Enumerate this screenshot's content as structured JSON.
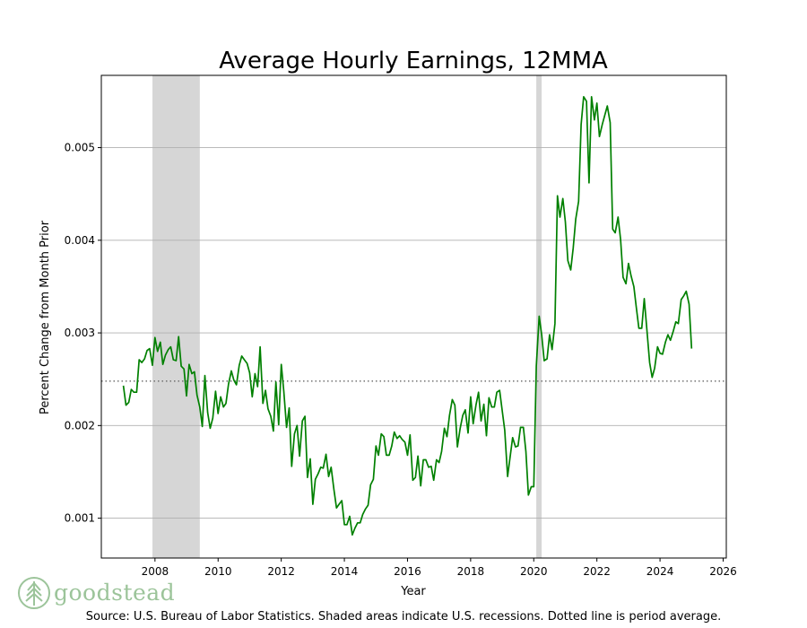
{
  "chart_data": {
    "type": "line",
    "title": "Average Hourly Earnings, 12MMA",
    "xlabel": "Year",
    "ylabel": "Percent Change from Month Prior",
    "xlim": [
      2006.3,
      2026.1
    ],
    "ylim": [
      0.00057,
      0.00578
    ],
    "x_ticks": [
      2008,
      2010,
      2012,
      2014,
      2016,
      2018,
      2020,
      2022,
      2024,
      2026
    ],
    "y_ticks": [
      0.001,
      0.002,
      0.003,
      0.004,
      0.005
    ],
    "x_tick_labels": [
      "2008",
      "2010",
      "2012",
      "2014",
      "2016",
      "2018",
      "2020",
      "2022",
      "2024",
      "2026"
    ],
    "y_tick_labels": [
      "0.001",
      "0.002",
      "0.003",
      "0.004",
      "0.005"
    ],
    "grid": "horizontal",
    "average_line": 0.00248,
    "recessions": [
      [
        2007.92,
        2009.42
      ],
      [
        2020.08,
        2020.25
      ]
    ],
    "series": [
      {
        "name": "Average Hourly Earnings 12MMA",
        "color": "#008000",
        "points": [
          [
            2007.0,
            0.00243
          ],
          [
            2007.08,
            0.00222
          ],
          [
            2007.17,
            0.00225
          ],
          [
            2007.25,
            0.00239
          ],
          [
            2007.33,
            0.00236
          ],
          [
            2007.42,
            0.00236
          ],
          [
            2007.5,
            0.00271
          ],
          [
            2007.58,
            0.00268
          ],
          [
            2007.67,
            0.00272
          ],
          [
            2007.75,
            0.00281
          ],
          [
            2007.83,
            0.00283
          ],
          [
            2007.92,
            0.00265
          ],
          [
            2008.0,
            0.00295
          ],
          [
            2008.08,
            0.0028
          ],
          [
            2008.17,
            0.0029
          ],
          [
            2008.25,
            0.00266
          ],
          [
            2008.33,
            0.00276
          ],
          [
            2008.42,
            0.00282
          ],
          [
            2008.5,
            0.00285
          ],
          [
            2008.58,
            0.00271
          ],
          [
            2008.67,
            0.0027
          ],
          [
            2008.75,
            0.00296
          ],
          [
            2008.83,
            0.00264
          ],
          [
            2008.92,
            0.00261
          ],
          [
            2009.0,
            0.00232
          ],
          [
            2009.08,
            0.00266
          ],
          [
            2009.17,
            0.00256
          ],
          [
            2009.25,
            0.00258
          ],
          [
            2009.33,
            0.00233
          ],
          [
            2009.42,
            0.0022
          ],
          [
            2009.5,
            0.00199
          ],
          [
            2009.58,
            0.00254
          ],
          [
            2009.67,
            0.00214
          ],
          [
            2009.75,
            0.00197
          ],
          [
            2009.83,
            0.00208
          ],
          [
            2009.92,
            0.00237
          ],
          [
            2010.0,
            0.00213
          ],
          [
            2010.08,
            0.00231
          ],
          [
            2010.17,
            0.0022
          ],
          [
            2010.25,
            0.00224
          ],
          [
            2010.33,
            0.00245
          ],
          [
            2010.42,
            0.00259
          ],
          [
            2010.5,
            0.00249
          ],
          [
            2010.58,
            0.00244
          ],
          [
            2010.67,
            0.00265
          ],
          [
            2010.75,
            0.00275
          ],
          [
            2010.83,
            0.00271
          ],
          [
            2010.92,
            0.00267
          ],
          [
            2011.0,
            0.00257
          ],
          [
            2011.08,
            0.00231
          ],
          [
            2011.17,
            0.00256
          ],
          [
            2011.25,
            0.00242
          ],
          [
            2011.33,
            0.00285
          ],
          [
            2011.42,
            0.00224
          ],
          [
            2011.5,
            0.00238
          ],
          [
            2011.58,
            0.00218
          ],
          [
            2011.67,
            0.0021
          ],
          [
            2011.75,
            0.00194
          ],
          [
            2011.83,
            0.00247
          ],
          [
            2011.92,
            0.00201
          ],
          [
            2012.0,
            0.00266
          ],
          [
            2012.08,
            0.00237
          ],
          [
            2012.17,
            0.00198
          ],
          [
            2012.25,
            0.00219
          ],
          [
            2012.33,
            0.00156
          ],
          [
            2012.42,
            0.00191
          ],
          [
            2012.5,
            0.002
          ],
          [
            2012.58,
            0.00167
          ],
          [
            2012.67,
            0.00205
          ],
          [
            2012.75,
            0.0021
          ],
          [
            2012.83,
            0.00144
          ],
          [
            2012.92,
            0.00164
          ],
          [
            2013.0,
            0.00115
          ],
          [
            2013.08,
            0.00142
          ],
          [
            2013.17,
            0.00148
          ],
          [
            2013.25,
            0.00155
          ],
          [
            2013.33,
            0.00154
          ],
          [
            2013.42,
            0.00169
          ],
          [
            2013.5,
            0.00145
          ],
          [
            2013.58,
            0.00155
          ],
          [
            2013.67,
            0.00131
          ],
          [
            2013.75,
            0.00111
          ],
          [
            2013.83,
            0.00115
          ],
          [
            2013.92,
            0.00119
          ],
          [
            2014.0,
            0.00093
          ],
          [
            2014.08,
            0.00093
          ],
          [
            2014.17,
            0.00102
          ],
          [
            2014.25,
            0.00082
          ],
          [
            2014.33,
            0.00089
          ],
          [
            2014.42,
            0.00095
          ],
          [
            2014.5,
            0.00095
          ],
          [
            2014.58,
            0.00104
          ],
          [
            2014.67,
            0.0011
          ],
          [
            2014.75,
            0.00114
          ],
          [
            2014.83,
            0.00136
          ],
          [
            2014.92,
            0.00142
          ],
          [
            2015.0,
            0.00178
          ],
          [
            2015.08,
            0.00168
          ],
          [
            2015.17,
            0.00191
          ],
          [
            2015.25,
            0.00188
          ],
          [
            2015.33,
            0.00168
          ],
          [
            2015.42,
            0.00168
          ],
          [
            2015.5,
            0.00178
          ],
          [
            2015.58,
            0.00193
          ],
          [
            2015.67,
            0.00186
          ],
          [
            2015.75,
            0.00189
          ],
          [
            2015.83,
            0.00185
          ],
          [
            2015.92,
            0.00182
          ],
          [
            2016.0,
            0.00168
          ],
          [
            2016.08,
            0.0019
          ],
          [
            2016.17,
            0.00141
          ],
          [
            2016.25,
            0.00144
          ],
          [
            2016.33,
            0.00167
          ],
          [
            2016.42,
            0.00135
          ],
          [
            2016.5,
            0.00163
          ],
          [
            2016.58,
            0.00163
          ],
          [
            2016.67,
            0.00155
          ],
          [
            2016.75,
            0.00156
          ],
          [
            2016.83,
            0.00141
          ],
          [
            2016.92,
            0.00163
          ],
          [
            2017.0,
            0.0016
          ],
          [
            2017.08,
            0.00172
          ],
          [
            2017.17,
            0.00197
          ],
          [
            2017.25,
            0.00188
          ],
          [
            2017.33,
            0.00211
          ],
          [
            2017.42,
            0.00228
          ],
          [
            2017.5,
            0.00222
          ],
          [
            2017.58,
            0.00177
          ],
          [
            2017.67,
            0.00197
          ],
          [
            2017.75,
            0.00211
          ],
          [
            2017.83,
            0.00217
          ],
          [
            2017.92,
            0.00192
          ],
          [
            2018.0,
            0.00231
          ],
          [
            2018.08,
            0.00202
          ],
          [
            2018.17,
            0.00222
          ],
          [
            2018.25,
            0.00236
          ],
          [
            2018.33,
            0.00205
          ],
          [
            2018.42,
            0.00223
          ],
          [
            2018.5,
            0.00189
          ],
          [
            2018.58,
            0.0023
          ],
          [
            2018.67,
            0.0022
          ],
          [
            2018.75,
            0.0022
          ],
          [
            2018.83,
            0.00236
          ],
          [
            2018.92,
            0.00238
          ],
          [
            2019.0,
            0.00216
          ],
          [
            2019.08,
            0.00195
          ],
          [
            2019.17,
            0.00145
          ],
          [
            2019.25,
            0.00166
          ],
          [
            2019.33,
            0.00187
          ],
          [
            2019.42,
            0.00177
          ],
          [
            2019.5,
            0.00178
          ],
          [
            2019.58,
            0.00198
          ],
          [
            2019.67,
            0.00198
          ],
          [
            2019.75,
            0.00172
          ],
          [
            2019.83,
            0.00125
          ],
          [
            2019.92,
            0.00134
          ],
          [
            2020.0,
            0.00134
          ],
          [
            2020.08,
            0.00264
          ],
          [
            2020.17,
            0.00318
          ],
          [
            2020.25,
            0.00298
          ],
          [
            2020.33,
            0.0027
          ],
          [
            2020.42,
            0.00272
          ],
          [
            2020.5,
            0.00298
          ],
          [
            2020.58,
            0.00282
          ],
          [
            2020.67,
            0.0031
          ],
          [
            2020.75,
            0.00448
          ],
          [
            2020.83,
            0.00425
          ],
          [
            2020.92,
            0.00445
          ],
          [
            2021.0,
            0.0042
          ],
          [
            2021.08,
            0.00378
          ],
          [
            2021.17,
            0.00368
          ],
          [
            2021.25,
            0.00392
          ],
          [
            2021.33,
            0.00423
          ],
          [
            2021.42,
            0.00442
          ],
          [
            2021.5,
            0.00525
          ],
          [
            2021.58,
            0.00555
          ],
          [
            2021.67,
            0.0055
          ],
          [
            2021.75,
            0.00462
          ],
          [
            2021.83,
            0.00555
          ],
          [
            2021.92,
            0.0053
          ],
          [
            2022.0,
            0.00548
          ],
          [
            2022.08,
            0.00512
          ],
          [
            2022.17,
            0.00525
          ],
          [
            2022.25,
            0.00535
          ],
          [
            2022.33,
            0.00545
          ],
          [
            2022.42,
            0.00527
          ],
          [
            2022.5,
            0.00412
          ],
          [
            2022.58,
            0.00408
          ],
          [
            2022.67,
            0.00425
          ],
          [
            2022.75,
            0.00401
          ],
          [
            2022.83,
            0.0036
          ],
          [
            2022.92,
            0.00353
          ],
          [
            2023.0,
            0.00375
          ],
          [
            2023.08,
            0.00362
          ],
          [
            2023.17,
            0.0035
          ],
          [
            2023.25,
            0.00327
          ],
          [
            2023.33,
            0.00305
          ],
          [
            2023.42,
            0.00305
          ],
          [
            2023.5,
            0.00337
          ],
          [
            2023.58,
            0.00305
          ],
          [
            2023.67,
            0.00268
          ],
          [
            2023.75,
            0.00252
          ],
          [
            2023.83,
            0.00262
          ],
          [
            2023.92,
            0.00285
          ],
          [
            2024.0,
            0.00278
          ],
          [
            2024.08,
            0.00277
          ],
          [
            2024.17,
            0.0029
          ],
          [
            2024.25,
            0.00298
          ],
          [
            2024.33,
            0.00292
          ],
          [
            2024.42,
            0.00302
          ],
          [
            2024.5,
            0.00312
          ],
          [
            2024.58,
            0.0031
          ],
          [
            2024.67,
            0.00336
          ],
          [
            2024.75,
            0.0034
          ],
          [
            2024.83,
            0.00345
          ],
          [
            2024.92,
            0.00331
          ],
          [
            2025.0,
            0.00283
          ]
        ]
      }
    ]
  },
  "logo": {
    "text": "goodstead",
    "icon": "tree-logo-icon"
  },
  "source_note": "Source: U.S. Bureau of Labor Statistics. Shaded areas indicate U.S. recessions. Dotted line is period average."
}
